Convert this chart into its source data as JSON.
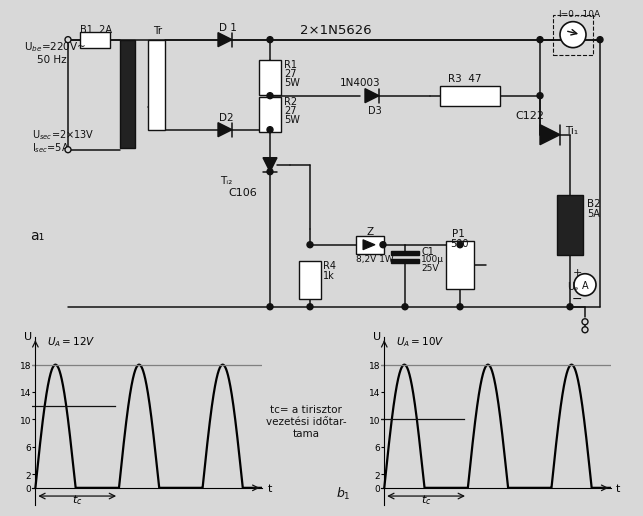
{
  "bg_color": "#d8d8d8",
  "fig_width": 6.23,
  "fig_height": 5.08,
  "graph1": {
    "label": "$U_A=12V$",
    "hline1": 18,
    "hline2": 12,
    "yticks": [
      0,
      2,
      6,
      10,
      14,
      18
    ],
    "ytick_labels": [
      "0",
      "2",
      "6",
      "10",
      "14",
      "18"
    ]
  },
  "graph2": {
    "label": "$U_A=10V$",
    "hline1": 18,
    "hline2": 10,
    "yticks": [
      0,
      2,
      6,
      10,
      14,
      18
    ],
    "ytick_labels": [
      "0",
      "2",
      "6",
      "10",
      "14",
      "18"
    ]
  },
  "annotation": "tᴄ= a tirisztor\nvezetési időtar-\ntama",
  "b_label": "b₁",
  "a_label": "a₁",
  "label_2x1N5626": "2×1N5626",
  "label_1N4003": "1N4003",
  "label_C122": "C122",
  "label_C106": "C106",
  "label_Tr": "Tr",
  "label_B1": "B1  2A",
  "label_D1": "D 1",
  "label_D2": "D2",
  "label_D3": "D3",
  "label_Ti1": "Ti₁",
  "label_Ti2": "Tᵢ₂",
  "label_R1": "R1\n27\n5W",
  "label_R2": "R2\n27\n5W",
  "label_R3": "R3  47",
  "label_R4": "R4\n1k",
  "label_Z": "Z\n8,2V 1W",
  "label_C1": "C1\n100μ\n25V",
  "label_P1": "P1\n500",
  "label_B2": "B2\n5A",
  "label_Ube": "U$_{be}$=220V~\n    50 Hz",
  "label_Usec": "U$_{sec}$=2×13V",
  "label_Isec": "I$_{sec}$=5A",
  "label_I": "I=0...10A",
  "label_UA": "Uₔ",
  "label_A": "A",
  "line_color": "#111111",
  "component_fill": "#ffffff",
  "dark_fill": "#222222"
}
